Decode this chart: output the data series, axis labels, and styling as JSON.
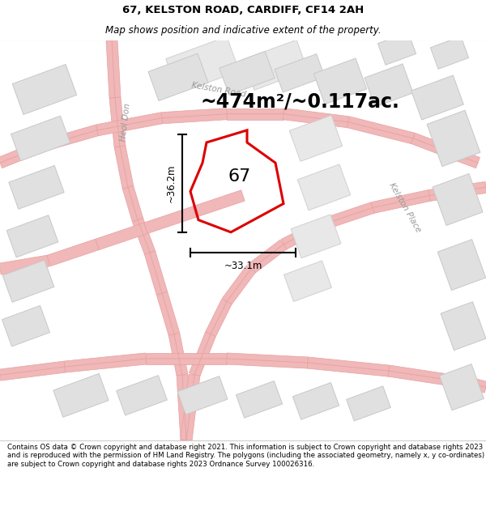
{
  "title": "67, KELSTON ROAD, CARDIFF, CF14 2AH",
  "subtitle": "Map shows position and indicative extent of the property.",
  "area_text": "~474m²/~0.117ac.",
  "width_label": "~33.1m",
  "height_label": "~36.2m",
  "number_label": "67",
  "footer": "Contains OS data © Crown copyright and database right 2021. This information is subject to Crown copyright and database rights 2023 and is reproduced with the permission of HM Land Registry. The polygons (including the associated geometry, namely x, y co-ordinates) are subject to Crown copyright and database rights 2023 Ordnance Survey 100026316.",
  "map_bg": "#f8f8f8",
  "road_color": "#f0b8b8",
  "road_edge": "#e8a0a0",
  "plot_fill": "none",
  "plot_border": "#dd0000",
  "building_fill": "#e0e0e0",
  "building_border": "#c8c8c8",
  "block_fill": "#e8e8e8",
  "block_border": "#d0d0d0",
  "title_fontsize": 9.5,
  "subtitle_fontsize": 8.5,
  "area_fontsize": 17,
  "label_fontsize": 8.5,
  "number_fontsize": 16,
  "road_label_fontsize": 7.5,
  "footer_fontsize": 6.2
}
